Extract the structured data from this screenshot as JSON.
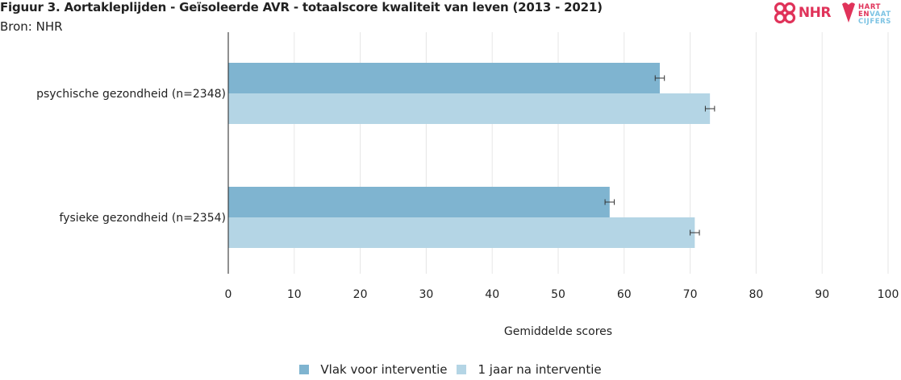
{
  "header": {
    "title": "Figuur 3. Aortakleplijden - Geïsoleerde AVR - totaalscore kwaliteit van leven (2013 - 2021)",
    "source": "Bron: NHR"
  },
  "logos": {
    "nhr": {
      "text": "NHR",
      "icon": "nhr-cross-icon",
      "color": "#e0335a"
    },
    "hartenvaatcijfers": {
      "line1": "HART",
      "line2_en": "EN",
      "line2_rest": "VAAT",
      "line3": "CIJFERS",
      "icon": "heart-v-icon"
    }
  },
  "colors": {
    "before": "#7fb4d0",
    "after": "#b4d5e5",
    "grid": "#e6e6e6",
    "axis": "#222222",
    "errorbar": "#333333"
  },
  "chart_data": {
    "type": "bar",
    "orientation": "horizontal",
    "title": "Figuur 3. Aortakleplijden - Geïsoleerde AVR - totaalscore kwaliteit van leven (2013 - 2021)",
    "xlabel": "Gemiddelde scores",
    "ylabel": "",
    "xlim": [
      0,
      100
    ],
    "xticks": [
      0,
      10,
      20,
      30,
      40,
      50,
      60,
      70,
      80,
      90,
      100
    ],
    "categories": [
      "psychische gezondheid (n=2348)",
      "fysieke gezondheid (n=2354)"
    ],
    "series": [
      {
        "name": "Vlak voor interventie",
        "values": [
          65.4,
          57.8
        ],
        "error": [
          0.7,
          0.7
        ]
      },
      {
        "name": "1 jaar na interventie",
        "values": [
          73.0,
          70.7
        ],
        "error": [
          0.7,
          0.7
        ]
      }
    ],
    "grid": true,
    "legend": "bottom"
  }
}
